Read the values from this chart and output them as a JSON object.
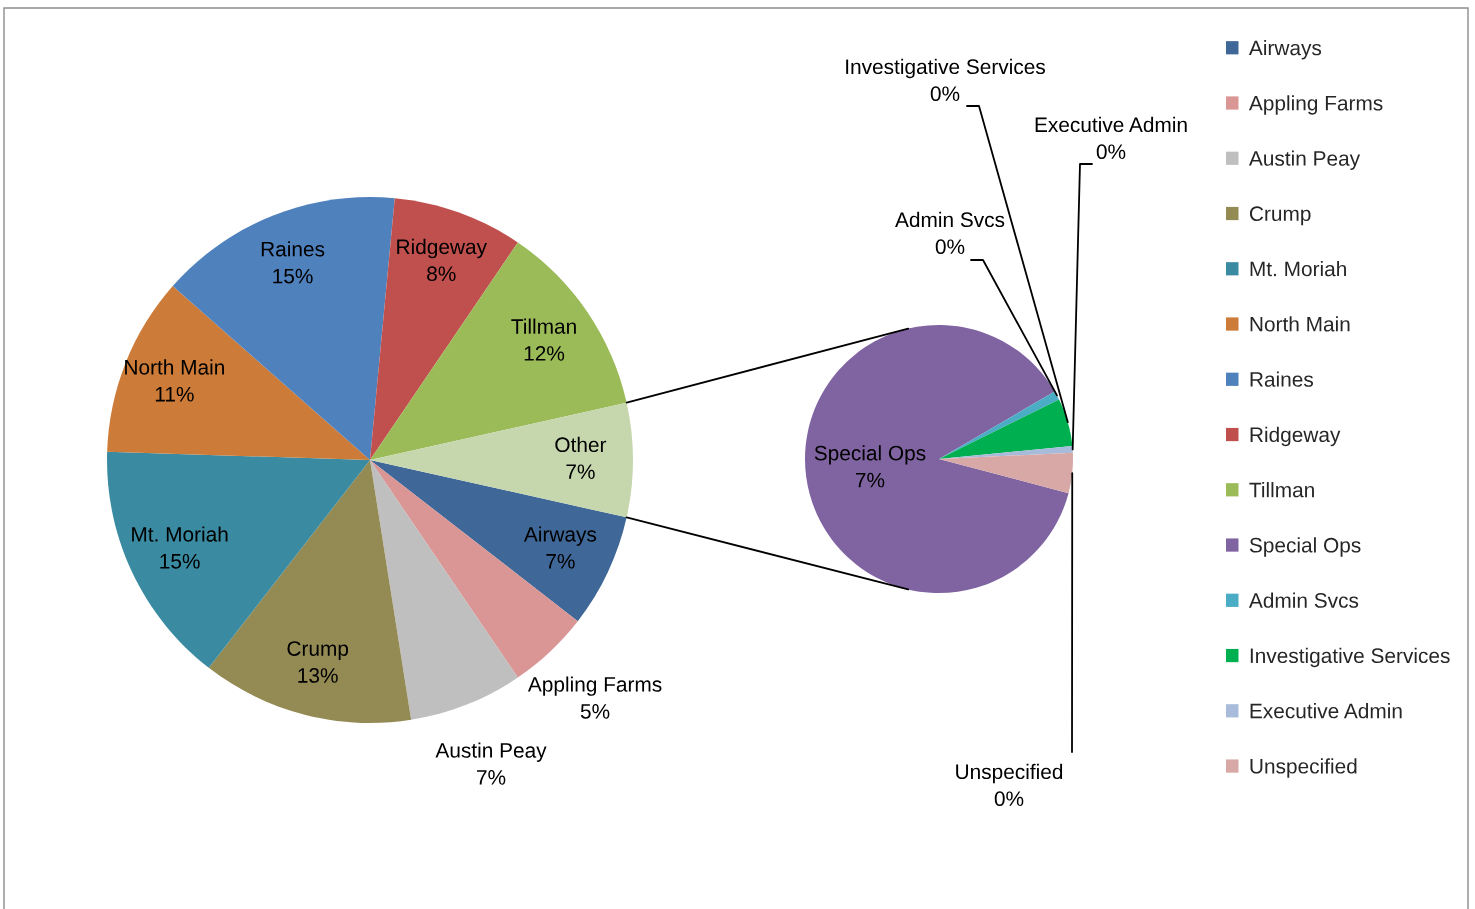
{
  "chart_data": [
    {
      "type": "pie",
      "categories": [
        "Airways",
        "Appling Farms",
        "Austin Peay",
        "Crump",
        "Mt. Moriah",
        "North Main",
        "Raines",
        "Ridgeway",
        "Tillman",
        "Other"
      ],
      "values": [
        7,
        5,
        7,
        13,
        15,
        11,
        15,
        8,
        12,
        7
      ],
      "colors": [
        "#3f6798",
        "#d99694",
        "#bfbfbf",
        "#948a54",
        "#3a8ba1",
        "#cc7b38",
        "#4f81bd",
        "#c0504d",
        "#9bbb59",
        "#c6d7ad"
      ],
      "value_labels": [
        "7%",
        "5%",
        "7%",
        "13%",
        "15%",
        "11%",
        "15%",
        "8%",
        "12%",
        "7%"
      ],
      "legend": "right"
    },
    {
      "type": "pie",
      "categories": [
        "Special Ops",
        "Admin Svcs",
        "Investigative Services",
        "Executive Admin",
        "Unspecified"
      ],
      "values": [
        6.5,
        0.08,
        0.43,
        0.06,
        0.36
      ],
      "colors": [
        "#8064a2",
        "#4bacc6",
        "#00b050",
        "#a9bbdb",
        "#d8a8a7"
      ],
      "value_labels": [
        "7%",
        "0%",
        "0%",
        "0%",
        "0%"
      ],
      "legend": "right"
    }
  ]
}
